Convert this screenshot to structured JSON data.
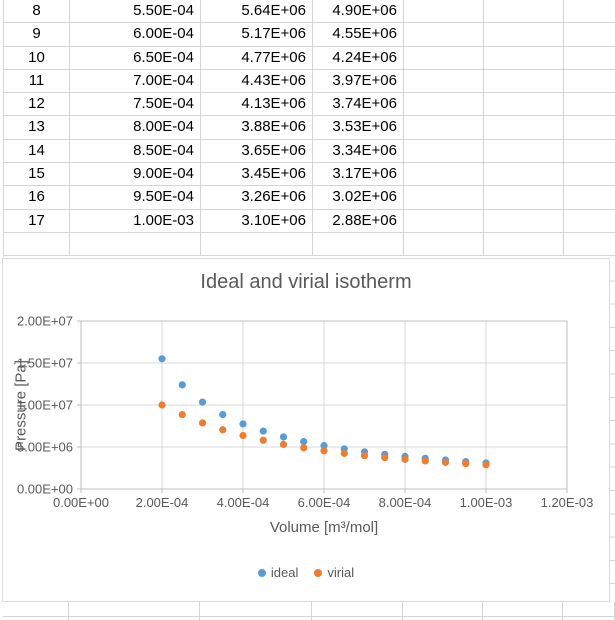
{
  "sheet": {
    "rows": [
      {
        "cells": [
          "8",
          "5.50E-04",
          "5.64E+06",
          "4.90E+06",
          "",
          "",
          ""
        ]
      },
      {
        "cells": [
          "9",
          "6.00E-04",
          "5.17E+06",
          "4.55E+06",
          "",
          "",
          ""
        ]
      },
      {
        "cells": [
          "10",
          "6.50E-04",
          "4.77E+06",
          "4.24E+06",
          "",
          "",
          ""
        ]
      },
      {
        "cells": [
          "11",
          "7.00E-04",
          "4.43E+06",
          "3.97E+06",
          "",
          "",
          ""
        ]
      },
      {
        "cells": [
          "12",
          "7.50E-04",
          "4.13E+06",
          "3.74E+06",
          "",
          "",
          ""
        ]
      },
      {
        "cells": [
          "13",
          "8.00E-04",
          "3.88E+06",
          "3.53E+06",
          "",
          "",
          ""
        ]
      },
      {
        "cells": [
          "14",
          "8.50E-04",
          "3.65E+06",
          "3.34E+06",
          "",
          "",
          ""
        ]
      },
      {
        "cells": [
          "15",
          "9.00E-04",
          "3.45E+06",
          "3.17E+06",
          "",
          "",
          ""
        ]
      },
      {
        "cells": [
          "16",
          "9.50E-04",
          "3.26E+06",
          "3.02E+06",
          "",
          "",
          ""
        ]
      },
      {
        "cells": [
          "17",
          "1.00E-03",
          "3.10E+06",
          "2.88E+06",
          "",
          "",
          ""
        ]
      },
      {
        "cells": [
          "",
          "",
          "",
          "",
          "",
          "",
          ""
        ]
      }
    ]
  },
  "chart_data": {
    "type": "scatter",
    "title": "Ideal and virial isotherm",
    "xlabel": "Volume [m³/mol]",
    "ylabel": "Pressure [Pa]",
    "xlim": [
      0,
      0.0012
    ],
    "ylim": [
      0,
      20000000
    ],
    "grid": true,
    "legend_position": "bottom",
    "x_ticks": {
      "values": [
        0,
        0.0002,
        0.0004,
        0.0006,
        0.0008,
        0.001,
        0.0012
      ],
      "labels": [
        "0.00E+00",
        "2.00E-04",
        "4.00E-04",
        "6.00E-04",
        "8.00E-04",
        "1.00E-03",
        "1.20E-03"
      ]
    },
    "y_ticks": {
      "values": [
        0,
        5000000,
        10000000,
        15000000,
        20000000
      ],
      "labels": [
        "0.00E+00",
        "5.00E+06",
        "1.00E+07",
        "1.50E+07",
        "2.00E+07"
      ]
    },
    "x": [
      0.0002,
      0.00025,
      0.0003,
      0.00035,
      0.0004,
      0.00045,
      0.0005,
      0.00055,
      0.0006,
      0.00065,
      0.0007,
      0.00075,
      0.0008,
      0.00085,
      0.0009,
      0.00095,
      0.001
    ],
    "series": [
      {
        "name": "ideal",
        "color": "#5B9BD5",
        "values": [
          15500000,
          12400000,
          10340000,
          8860000,
          7750000,
          6890000,
          6200000,
          5640000,
          5170000,
          4770000,
          4430000,
          4130000,
          3880000,
          3650000,
          3450000,
          3260000,
          3100000
        ]
      },
      {
        "name": "virial",
        "color": "#ED7D31",
        "values": [
          10000000,
          8860000,
          7870000,
          7050000,
          6370000,
          5800000,
          5310000,
          4900000,
          4550000,
          4240000,
          3970000,
          3740000,
          3530000,
          3340000,
          3170000,
          3020000,
          2880000
        ]
      }
    ],
    "colors": {
      "grid": "#d9d9d9",
      "axis": "#bfbfbf",
      "text": "#595959"
    }
  }
}
